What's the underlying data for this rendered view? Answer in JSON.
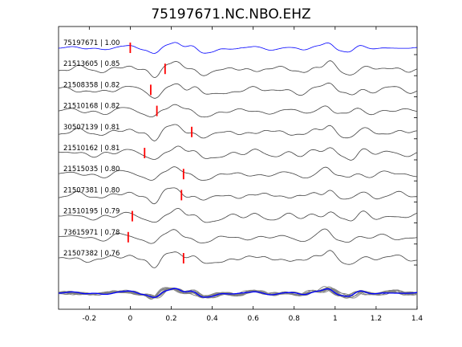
{
  "chart_data": {
    "type": "line",
    "title": "75197671.NC.NBO.EHZ",
    "xlim": [
      -0.35,
      1.4
    ],
    "x_ticks": [
      -0.2,
      0,
      0.2,
      0.4,
      0.6,
      0.8,
      1,
      1.2,
      1.4
    ],
    "x_tick_labels": [
      "-0.2",
      "0",
      "0.2",
      "0.4",
      "0.6",
      "0.8",
      "1",
      "1.2",
      "1.4"
    ],
    "grid": false,
    "colors": {
      "reference": "#0000ff",
      "trace": "#404040",
      "pick": "#ff0000",
      "stack": "#808080"
    },
    "traces": [
      {
        "label": "75197671 | 1.00",
        "pick": 0.0,
        "reference": true
      },
      {
        "label": "21513605 | 0.85",
        "pick": 0.17
      },
      {
        "label": "21508358 | 0.82",
        "pick": 0.1
      },
      {
        "label": "21510168 | 0.82",
        "pick": 0.13
      },
      {
        "label": "30507139 | 0.81",
        "pick": 0.3
      },
      {
        "label": "21510162 | 0.81",
        "pick": 0.07
      },
      {
        "label": "21515035 | 0.80",
        "pick": 0.26
      },
      {
        "label": "21507381 | 0.80",
        "pick": 0.25
      },
      {
        "label": "21510195 | 0.79",
        "pick": 0.01
      },
      {
        "label": "73615971 | 0.78",
        "pick": -0.01
      },
      {
        "label": "21507382 | 0.76",
        "pick": 0.26
      }
    ],
    "features": [
      [
        -0.35,
        0.0
      ],
      [
        -0.25,
        0.05
      ],
      [
        -0.15,
        -0.05
      ],
      [
        -0.05,
        0.08
      ],
      [
        0.0,
        0.2
      ],
      [
        0.05,
        -0.1
      ],
      [
        0.12,
        -0.65
      ],
      [
        0.17,
        0.45
      ],
      [
        0.22,
        0.55
      ],
      [
        0.26,
        -0.15
      ],
      [
        0.3,
        0.35
      ],
      [
        0.35,
        -0.5
      ],
      [
        0.4,
        -0.35
      ],
      [
        0.45,
        0.1
      ],
      [
        0.52,
        -0.2
      ],
      [
        0.6,
        0.2
      ],
      [
        0.68,
        -0.15
      ],
      [
        0.76,
        0.15
      ],
      [
        0.84,
        -0.3
      ],
      [
        0.9,
        0.2
      ],
      [
        0.97,
        0.7
      ],
      [
        1.02,
        -0.2
      ],
      [
        1.07,
        -0.45
      ],
      [
        1.12,
        0.25
      ],
      [
        1.2,
        -0.1
      ],
      [
        1.28,
        0.2
      ],
      [
        1.35,
        -0.1
      ],
      [
        1.4,
        0.05
      ]
    ]
  }
}
